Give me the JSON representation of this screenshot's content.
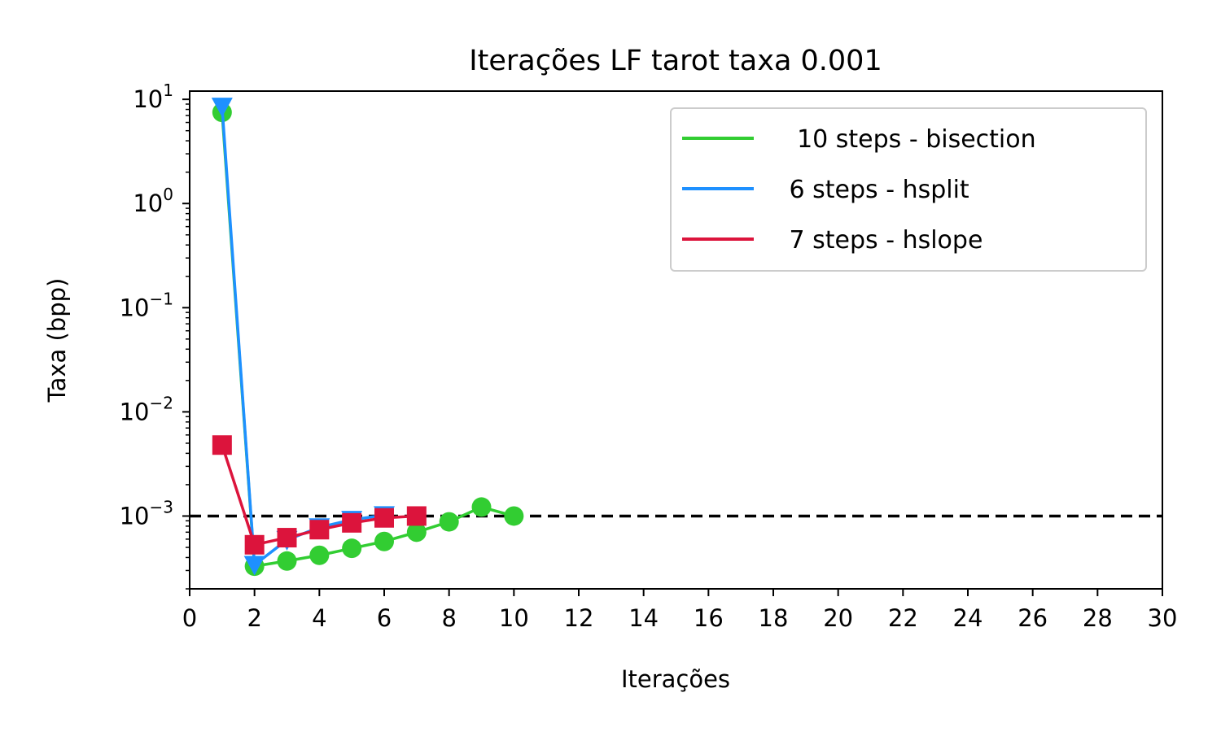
{
  "chart_data": {
    "type": "line",
    "title": "Iterações LF tarot taxa 0.001",
    "xlabel": "Iterações",
    "ylabel": "Taxa (bpp)",
    "xlim": [
      0,
      30
    ],
    "ylim": [
      0.0002,
      12
    ],
    "yscale": "log",
    "xticks": [
      "0",
      "2",
      "4",
      "6",
      "8",
      "10",
      "12",
      "14",
      "16",
      "18",
      "20",
      "22",
      "24",
      "26",
      "28",
      "30"
    ],
    "yticks": [
      {
        "base": "10",
        "exp": "1",
        "value": 10
      },
      {
        "base": "10",
        "exp": "0",
        "value": 1
      },
      {
        "base": "10",
        "exp": "−1",
        "value": 0.1
      },
      {
        "base": "10",
        "exp": "−2",
        "value": 0.01
      },
      {
        "base": "10",
        "exp": "−3",
        "value": 0.001
      }
    ],
    "reference_line": {
      "y": 0.001,
      "style": "dashed",
      "color": "#000000"
    },
    "legend_position": "top-right",
    "series": [
      {
        "name": "  10 steps - bisection",
        "color": "#32cd32",
        "marker": "circle",
        "x": [
          1,
          2,
          3,
          4,
          5,
          6,
          7,
          8,
          9,
          10
        ],
        "y": [
          7.5,
          0.00033,
          0.00037,
          0.00042,
          0.00049,
          0.00057,
          0.0007,
          0.00088,
          0.00122,
          0.001
        ]
      },
      {
        "name": " 6 steps - hsplit",
        "color": "#1e90ff",
        "marker": "triangle-down",
        "x": [
          1,
          2,
          3,
          4,
          5,
          6
        ],
        "y": [
          8.5,
          0.00034,
          0.00059,
          0.00078,
          0.00092,
          0.00102
        ]
      },
      {
        "name": " 7 steps - hslope",
        "color": "#dc143c",
        "marker": "square",
        "x": [
          1,
          2,
          3,
          4,
          5,
          6,
          7
        ],
        "y": [
          0.0048,
          0.00053,
          0.00062,
          0.00074,
          0.00086,
          0.00096,
          0.001
        ]
      }
    ]
  }
}
